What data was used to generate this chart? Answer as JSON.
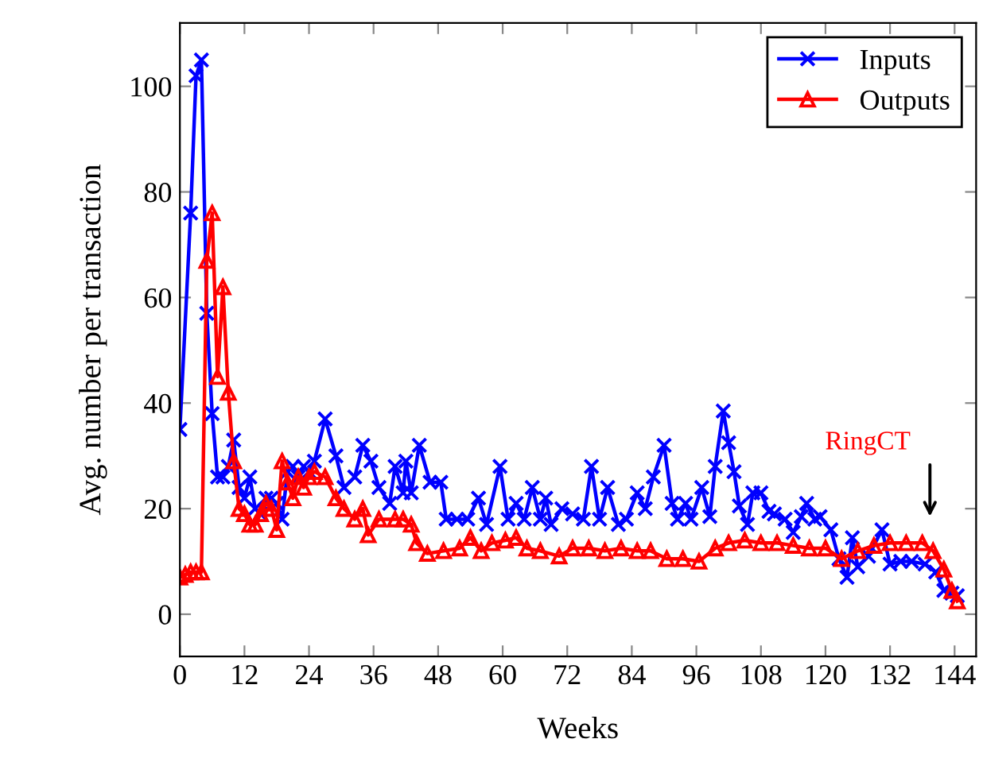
{
  "chart_data": {
    "type": "line",
    "xlabel": "Weeks",
    "ylabel": "Avg. number per transaction",
    "xlim": [
      0,
      148
    ],
    "ylim": [
      -8,
      112
    ],
    "xticks": [
      0,
      12,
      24,
      36,
      48,
      60,
      72,
      84,
      96,
      108,
      120,
      132,
      144
    ],
    "yticks": [
      0,
      20,
      40,
      60,
      80,
      100
    ],
    "grid": false,
    "legend": "top right",
    "line_style": "solid",
    "series": [
      {
        "name": "Inputs",
        "color": "#0000ff",
        "marker": "cross",
        "x": [
          0,
          2,
          3,
          4,
          5,
          6,
          7,
          8,
          9,
          10,
          11,
          12,
          13,
          14,
          15,
          16,
          17,
          18,
          19,
          20,
          21,
          22,
          23,
          24,
          25,
          27,
          29,
          30.5,
          32.5,
          34,
          35.5,
          37,
          39,
          40,
          41.5,
          42,
          43,
          44.5,
          46.5,
          48.5,
          49.5,
          51.5,
          53.5,
          55.5,
          57,
          59.5,
          61,
          62.5,
          64,
          65.5,
          67,
          68,
          69,
          71,
          73,
          75,
          76.5,
          78,
          79.5,
          81.5,
          83,
          85,
          86.5,
          88,
          90,
          91.5,
          92.5,
          94,
          95,
          97,
          98.5,
          99.5,
          101,
          102,
          103,
          104,
          105.5,
          106.5,
          108,
          109.5,
          110.5,
          112.5,
          114,
          115.5,
          116.5,
          118,
          119,
          121,
          122.5,
          124,
          125,
          126,
          128,
          130.5,
          132,
          134,
          136,
          138.5,
          140.5,
          142,
          143.5,
          144.5
        ],
        "values": [
          35,
          76,
          102,
          105,
          57,
          38,
          26,
          26,
          28,
          33,
          24,
          22,
          26,
          20,
          19,
          22,
          22,
          21,
          18,
          27,
          28,
          26,
          28,
          27,
          29,
          37,
          30,
          24,
          26,
          32,
          29,
          24,
          21,
          28,
          23,
          29,
          23,
          32,
          25,
          25,
          18,
          18,
          18,
          22,
          17,
          28,
          18,
          21,
          18,
          24,
          18,
          22,
          17,
          20,
          19,
          18,
          28,
          18,
          24,
          17,
          18,
          23,
          20,
          26,
          32,
          21,
          18,
          21,
          18,
          24,
          18.5,
          28,
          38.5,
          32.5,
          27,
          20.5,
          17,
          23,
          23,
          19.5,
          19,
          18,
          15.5,
          18.5,
          21,
          18,
          18.5,
          16,
          10.5,
          7,
          14.5,
          9,
          11,
          16,
          9.5,
          10,
          10,
          9.5,
          8,
          4.5,
          4,
          3.5
        ]
      },
      {
        "name": "Outputs",
        "color": "#ff0000",
        "marker": "triangle",
        "x": [
          0,
          1,
          2,
          3,
          4,
          5,
          6,
          7,
          8,
          9,
          10,
          11,
          12,
          13,
          14,
          15,
          16,
          17,
          18,
          19,
          20,
          21,
          22,
          23,
          24,
          25,
          27,
          29,
          30.5,
          32.5,
          34,
          35,
          37,
          40,
          41.5,
          43,
          44,
          46,
          49,
          52,
          54,
          56,
          58,
          60.5,
          62.5,
          64.5,
          67,
          70.5,
          73,
          76,
          79,
          82,
          85,
          87.5,
          90.5,
          93.5,
          96.5,
          99.5,
          102,
          105,
          108,
          111,
          114,
          117,
          120,
          123,
          126,
          129,
          132,
          135,
          138,
          140,
          142,
          143.5,
          144.5
        ],
        "values": [
          7,
          7.5,
          8,
          8,
          8,
          67,
          76,
          45,
          62,
          42,
          29,
          20,
          19,
          17,
          17,
          19,
          21,
          20,
          16,
          29,
          25,
          22,
          26,
          24,
          26,
          27,
          26,
          22,
          20,
          18,
          20,
          15,
          18,
          18,
          18,
          17,
          13.5,
          11.5,
          12,
          12.5,
          14.5,
          12,
          13.5,
          14,
          14.5,
          12.5,
          12,
          11,
          12.5,
          12.5,
          12,
          12.5,
          12,
          12,
          10.5,
          10.5,
          10,
          12.5,
          13.5,
          14,
          13.5,
          13.5,
          13,
          12.5,
          12.5,
          10.5,
          12,
          13,
          13.5,
          13.5,
          13.5,
          12,
          8.5,
          4.5,
          2.5
        ]
      }
    ],
    "annotations": [
      "RingCT"
    ]
  }
}
